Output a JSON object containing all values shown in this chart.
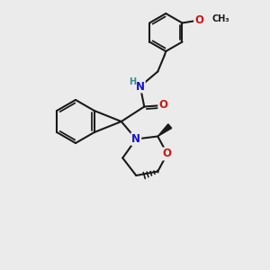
{
  "bg_color": "#ebebeb",
  "bond_color": "#1a1a1a",
  "bond_width": 1.5,
  "atom_colors": {
    "N": "#1414cc",
    "O": "#cc1414",
    "H": "#3a8a8a",
    "C": "#1a1a1a"
  },
  "font_size_atom": 8.5,
  "font_size_H": 7.0
}
